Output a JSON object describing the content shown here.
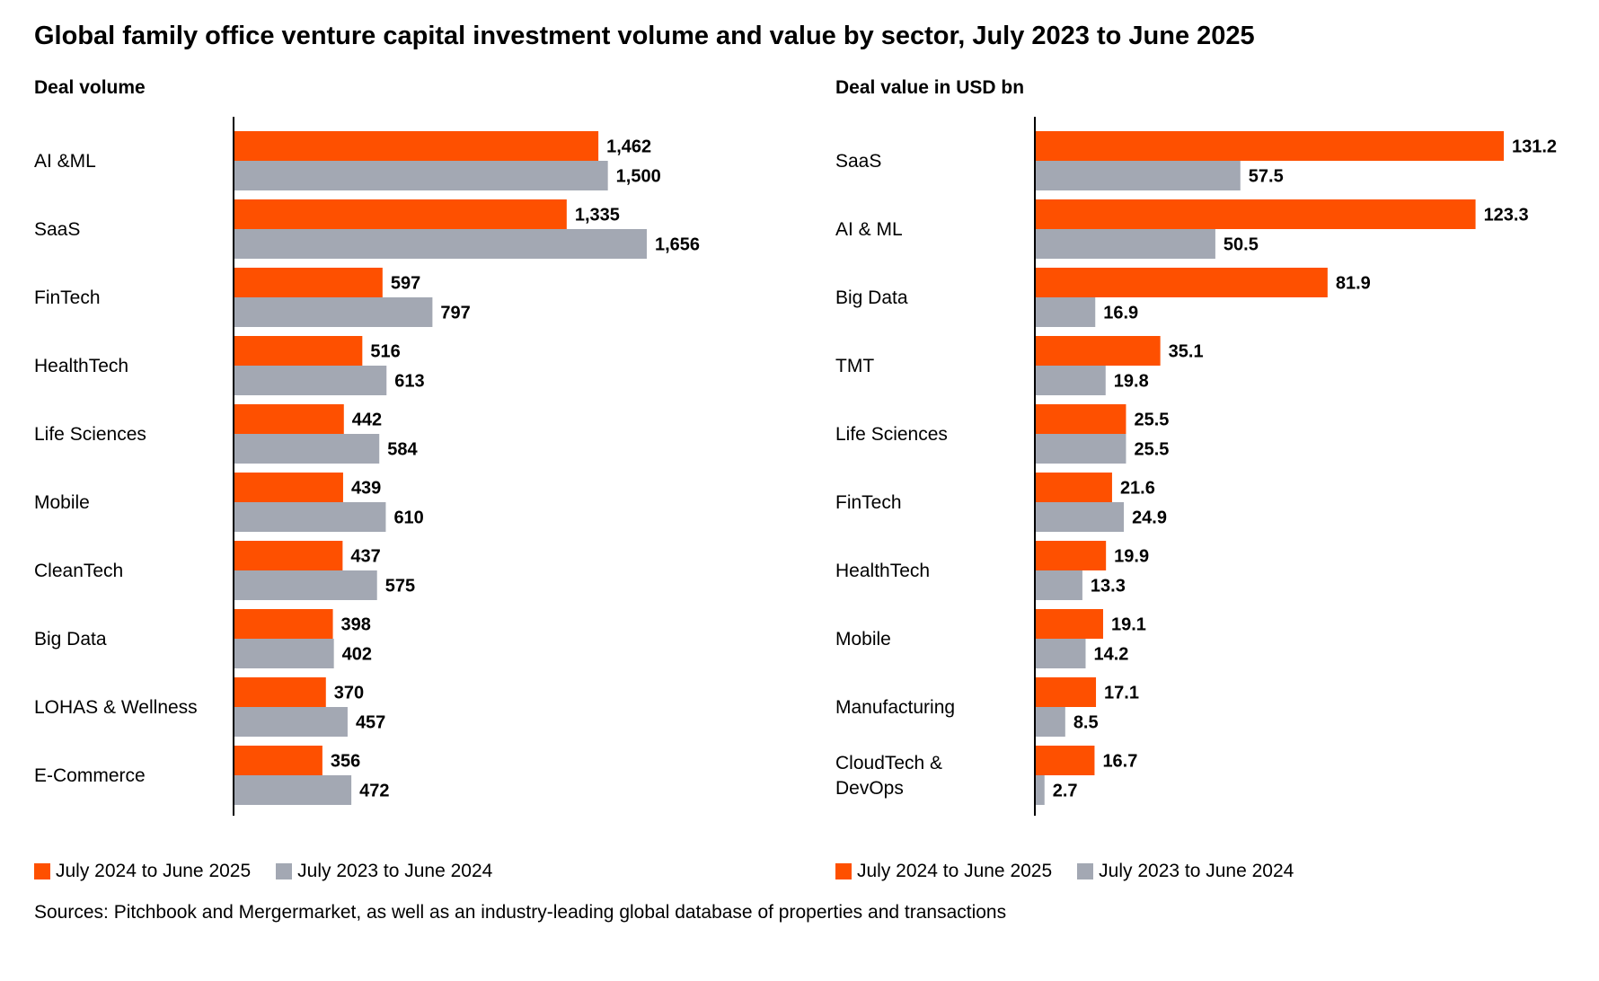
{
  "title": "Global family office venture capital investment volume and value by sector, July 2023 to June 2025",
  "source": "Sources: Pitchbook and Mergermarket, as well as an industry-leading global database of properties and transactions",
  "colors": {
    "current": "#fe5000",
    "previous": "#a3a8b3",
    "axis": "#000000"
  },
  "legend": {
    "current": "July 2024 to June 2025",
    "previous": "July 2023 to June 2024"
  },
  "chart_data": [
    {
      "type": "bar",
      "orientation": "horizontal",
      "title": "Deal volume",
      "categories": [
        "AI &ML",
        "SaaS",
        "FinTech",
        "HealthTech",
        "Life Sciences",
        "Mobile",
        "CleanTech",
        "Big Data",
        "LOHAS & Wellness",
        "E-Commerce"
      ],
      "series": [
        {
          "name": "July 2024 to June 2025",
          "values": [
            1462,
            1335,
            597,
            516,
            442,
            439,
            437,
            398,
            370,
            356
          ],
          "labels": [
            "1,462",
            "1,335",
            "597",
            "516",
            "442",
            "439",
            "437",
            "398",
            "370",
            "356"
          ]
        },
        {
          "name": "July 2023 to June 2024",
          "values": [
            1500,
            1656,
            797,
            613,
            584,
            610,
            575,
            402,
            457,
            472
          ],
          "labels": [
            "1,500",
            "1,656",
            "797",
            "613",
            "584",
            "610",
            "575",
            "402",
            "457",
            "472"
          ]
        }
      ],
      "xlim": [
        0,
        1656
      ],
      "grid": false,
      "legend_position": "bottom-left"
    },
    {
      "type": "bar",
      "orientation": "horizontal",
      "title": "Deal value in USD bn",
      "categories": [
        "SaaS",
        "AI & ML",
        "Big Data",
        "TMT",
        "Life Sciences",
        "FinTech",
        "HealthTech",
        "Mobile",
        "Manufacturing",
        "CloudTech & DevOps"
      ],
      "series": [
        {
          "name": "July 2024 to June 2025",
          "values": [
            131.2,
            123.3,
            81.9,
            35.1,
            25.5,
            21.6,
            19.9,
            19.1,
            17.1,
            16.7
          ],
          "labels": [
            "131.2",
            "123.3",
            "81.9",
            "35.1",
            "25.5",
            "21.6",
            "19.9",
            "19.1",
            "17.1",
            "16.7"
          ]
        },
        {
          "name": "July 2023 to June 2024",
          "values": [
            57.5,
            50.5,
            16.9,
            19.8,
            25.5,
            24.9,
            13.3,
            14.2,
            8.5,
            2.7
          ],
          "labels": [
            "57.5",
            "50.5",
            "16.9",
            "19.8",
            "25.5",
            "24.9",
            "13.3",
            "14.2",
            "8.5",
            "2.7"
          ]
        }
      ],
      "xlim": [
        0,
        131.2
      ],
      "grid": false,
      "legend_position": "bottom-left"
    }
  ]
}
